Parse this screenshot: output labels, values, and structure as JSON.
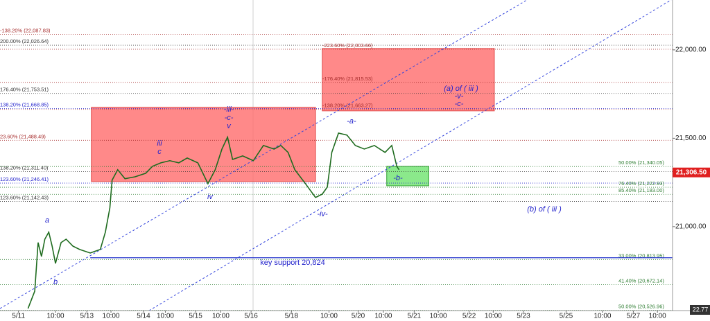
{
  "chart_data": {
    "type": "line",
    "xlim": [
      0,
      120
    ],
    "ylim": [
      20525,
      22282
    ],
    "yticks": [
      {
        "value": 21000,
        "label": "21,000.00"
      },
      {
        "value": 21500,
        "label": "21,500.00"
      },
      {
        "value": 22000,
        "label": "22,000.00"
      }
    ],
    "xticks": [
      {
        "value": 3.3,
        "label": "5/11"
      },
      {
        "value": 9.9,
        "label": "10:00"
      },
      {
        "value": 15.5,
        "label": "5/13"
      },
      {
        "value": 19.8,
        "label": "10:00"
      },
      {
        "value": 25.6,
        "label": "5/14"
      },
      {
        "value": 29.5,
        "label": "10:00"
      },
      {
        "value": 34.9,
        "label": "5/15"
      },
      {
        "value": 39.4,
        "label": "10:00"
      },
      {
        "value": 44.8,
        "label": "5/16"
      },
      {
        "value": 52,
        "label": "5/18"
      },
      {
        "value": 58.7,
        "label": "10:00"
      },
      {
        "value": 63.9,
        "label": "5/20"
      },
      {
        "value": 68.4,
        "label": "10:00"
      },
      {
        "value": 73.9,
        "label": "5/21"
      },
      {
        "value": 78.2,
        "label": "10:00"
      },
      {
        "value": 83.7,
        "label": "5/22"
      },
      {
        "value": 88,
        "label": "10:00"
      },
      {
        "value": 93.4,
        "label": "5/23"
      },
      {
        "value": 101,
        "label": "5/25"
      },
      {
        "value": 107.5,
        "label": "10:00"
      },
      {
        "value": 113,
        "label": "5/27"
      },
      {
        "value": 117.3,
        "label": "10:00"
      }
    ],
    "series": [
      {
        "color": "#1e6b1e",
        "x": [
          5.0,
          6.2,
          6.8,
          7.4,
          8.0,
          8.7,
          9.3,
          9.9,
          10.9,
          11.8,
          13.0,
          14.2,
          16.1,
          17.9,
          18.8,
          19.6,
          20.0,
          21.0,
          22.3,
          24.1,
          26.0,
          27.2,
          28.7,
          30.3,
          31.9,
          33.4,
          35.3,
          37.1,
          38.4,
          39.6,
          40.6,
          41.5,
          43.3,
          45.2,
          47.0,
          48.9,
          50.1,
          51.4,
          52.6,
          54.5,
          56.3,
          57.5,
          58.4,
          59.2,
          60.4,
          61.9,
          63.4,
          65.0,
          66.8,
          68.7,
          69.9,
          70.8,
          71.2
        ],
        "values": [
          20537,
          20635,
          20910,
          20831,
          20929,
          20969,
          20890,
          20792,
          20910,
          20929,
          20890,
          20871,
          20851,
          20871,
          20969,
          21106,
          21263,
          21322,
          21271,
          21282,
          21302,
          21341,
          21361,
          21373,
          21361,
          21388,
          21361,
          21243,
          21322,
          21439,
          21506,
          21380,
          21400,
          21373,
          21459,
          21439,
          21459,
          21420,
          21322,
          21243,
          21165,
          21184,
          21224,
          21420,
          21529,
          21518,
          21459,
          21439,
          21459,
          21420,
          21459,
          21341,
          21322
        ]
      }
    ],
    "last_price": {
      "value": 21306.5,
      "label": "21,306.50"
    },
    "corner_label": "22.77",
    "zones": [
      {
        "x": [
          16.3,
          56.3
        ],
        "y": [
          21255,
          21675
        ],
        "color": "#ff6b6b"
      },
      {
        "x": [
          57.5,
          88.2
        ],
        "y": [
          21655,
          22008
        ],
        "color": "#ff6b6b"
      },
      {
        "x": [
          69.0,
          76.5
        ],
        "y": [
          21231,
          21341
        ],
        "color": "#6ee36e"
      }
    ],
    "support": {
      "value": 20824,
      "x": [
        16.1,
        120
      ],
      "color": "#2233cc"
    },
    "left_levels": [
      {
        "label": "-138.20% (22,087.83)",
        "value": 22087.83,
        "color": "#a52a2a"
      },
      {
        "label": "200.00% (22,026.64)",
        "value": 22026.64,
        "color": "#333333"
      },
      {
        "label": "176.40% (21,753.51)",
        "value": 21753.51,
        "color": "#333333"
      },
      {
        "label": "138.20% (21,668.85)",
        "value": 21668.85,
        "color": "#2222cc"
      },
      {
        "label": "23.60% (21,488.49)",
        "value": 21488.49,
        "color": "#a52a2a"
      },
      {
        "label": "138.20% (21,311.40)",
        "value": 21311.4,
        "color": "#333333"
      },
      {
        "label": "123.60% (21,246.41)",
        "value": 21246.41,
        "color": "#2222cc"
      },
      {
        "label": "123.60% (21,142.43)",
        "value": 21142.43,
        "color": "#333333"
      }
    ],
    "box_levels": [
      {
        "label": "-223.60% (22,003.66)",
        "value": 22003.66,
        "color": "#a52a2a"
      },
      {
        "label": "-176.40% (21,815.53)",
        "value": 21815.53,
        "color": "#a52a2a"
      },
      {
        "label": "-138.20% (21,663.27)",
        "value": 21663.27,
        "color": "#a52a2a"
      }
    ],
    "right_levels": [
      {
        "label": "50.00% (21,340.05)",
        "value": 21340.05,
        "color": "#2e7d32"
      },
      {
        "label": "76.40% (21,222.93)",
        "value": 21222.93,
        "color": "#2e7d32"
      },
      {
        "label": "85.40% (21,183.00)",
        "value": 21183.0,
        "color": "#2e7d32"
      },
      {
        "label": "33.00% (20,813.95)",
        "value": 20813.95,
        "color": "#2e7d32"
      },
      {
        "label": "41.40% (20,672.14)",
        "value": 20672.14,
        "color": "#2e7d32"
      },
      {
        "label": "50.00% (20,526.96)",
        "value": 20526.96,
        "color": "#2e7d32"
      }
    ],
    "annotations": [
      "a",
      "b",
      "iii",
      "c",
      "-iii-",
      "-c-",
      "v",
      "iv",
      "-a-",
      "-iv-",
      "-b-",
      "(a) of ( iii )",
      "-v-",
      "-c-",
      "(b) of ( iii )",
      "key support 20,824"
    ]
  }
}
